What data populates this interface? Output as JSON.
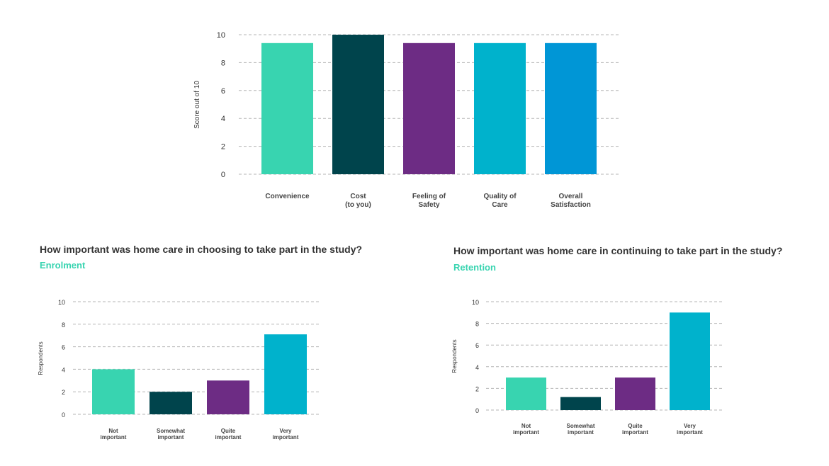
{
  "colors": {
    "teal": "#38d4b0",
    "dark_teal": "#00444c",
    "purple": "#6d2c84",
    "cyan": "#00b2cc",
    "blue": "#0096d6",
    "subheading": "#38d4b0"
  },
  "sections": {
    "enrolment": {
      "heading": "How important was home care in choosing to take part in the study?",
      "subheading": "Enrolment"
    },
    "retention": {
      "heading": "How important was home care in continuing to take part in the study?",
      "subheading": "Retention"
    }
  },
  "chart_data": [
    {
      "id": "satisfaction",
      "type": "bar",
      "title": "",
      "ylabel": "Score out of 10",
      "xlabel": "",
      "ylim": [
        0,
        10
      ],
      "yticks": [
        0,
        2,
        4,
        6,
        8,
        10
      ],
      "grid": true,
      "categories": [
        [
          "Convenience"
        ],
        [
          "Cost",
          "(to you)"
        ],
        [
          "Feeling of",
          "Safety"
        ],
        [
          "Quality of",
          "Care"
        ],
        [
          "Overall",
          "Satisfaction"
        ]
      ],
      "values": [
        9.4,
        10,
        9.4,
        9.4,
        9.4
      ],
      "bar_colors": [
        "#38d4b0",
        "#00444c",
        "#6d2c84",
        "#00b2cc",
        "#0096d6"
      ]
    },
    {
      "id": "enrolment",
      "type": "bar",
      "title": "Enrolment",
      "ylabel": "Respondents",
      "xlabel": "",
      "ylim": [
        0,
        10
      ],
      "yticks": [
        0,
        2,
        4,
        6,
        8,
        10
      ],
      "grid": true,
      "categories": [
        [
          "Not",
          "important"
        ],
        [
          "Somewhat",
          "important"
        ],
        [
          "Quite",
          "important"
        ],
        [
          "Very",
          "important"
        ]
      ],
      "values": [
        4,
        2,
        3,
        7.1
      ],
      "bar_colors": [
        "#38d4b0",
        "#00444c",
        "#6d2c84",
        "#00b2cc"
      ]
    },
    {
      "id": "retention",
      "type": "bar",
      "title": "Retention",
      "ylabel": "Respondents",
      "xlabel": "",
      "ylim": [
        0,
        10
      ],
      "yticks": [
        0,
        2,
        4,
        6,
        8,
        10
      ],
      "grid": true,
      "categories": [
        [
          "Not",
          "important"
        ],
        [
          "Somewhat",
          "important"
        ],
        [
          "Quite",
          "important"
        ],
        [
          "Very",
          "important"
        ]
      ],
      "values": [
        3,
        1.2,
        3,
        9
      ],
      "bar_colors": [
        "#38d4b0",
        "#00444c",
        "#6d2c84",
        "#00b2cc"
      ]
    }
  ]
}
